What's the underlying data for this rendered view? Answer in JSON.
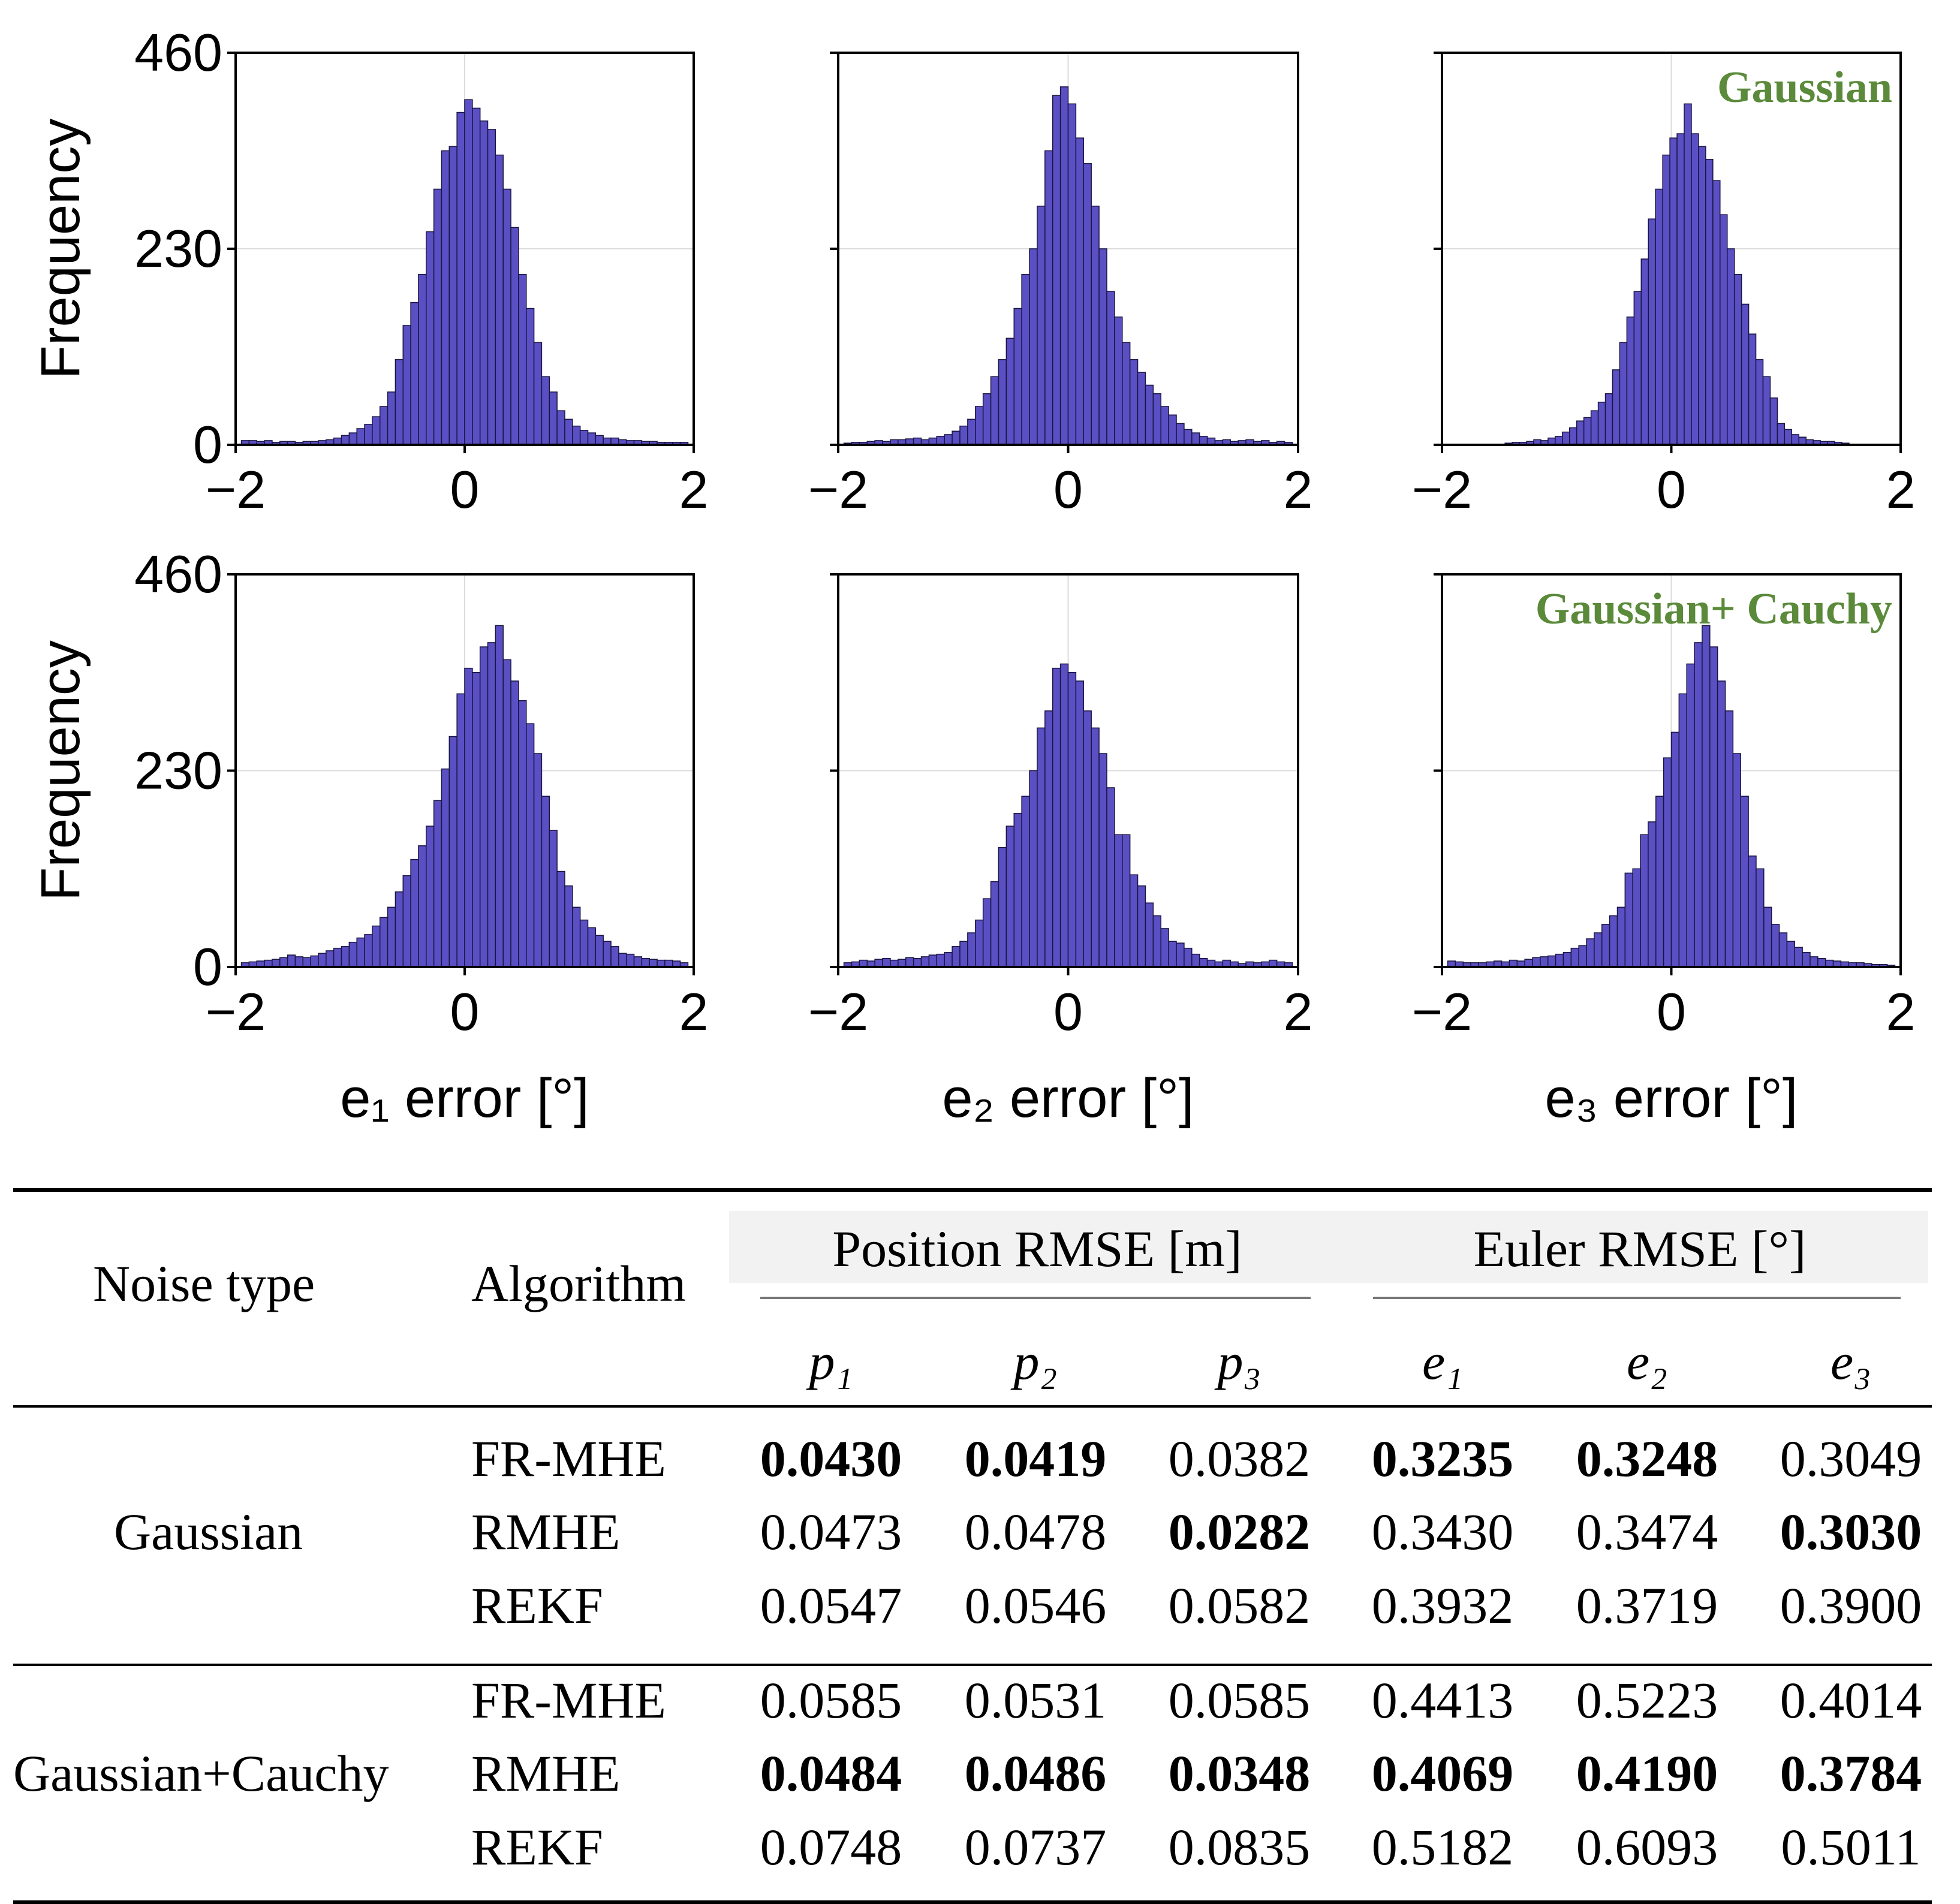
{
  "chart_data": [
    {
      "type": "bar",
      "xlabel": "",
      "ylabel": "Frequency",
      "xlim": [
        -2,
        2
      ],
      "ylim": [
        0,
        460
      ],
      "xticks": [
        "−2",
        "0",
        "2"
      ],
      "yticks": [
        "0",
        "230",
        "460"
      ],
      "grid": true,
      "annotation": "",
      "bar_color": "#5b4fc4",
      "bin_range": [
        -1.95,
        1.95
      ],
      "values": [
        5,
        5,
        4,
        5,
        3,
        4,
        4,
        3,
        4,
        4,
        5,
        6,
        8,
        11,
        14,
        19,
        24,
        33,
        45,
        62,
        100,
        140,
        167,
        200,
        250,
        300,
        345,
        350,
        390,
        405,
        395,
        380,
        370,
        340,
        300,
        255,
        200,
        160,
        120,
        80,
        62,
        40,
        30,
        22,
        17,
        14,
        11,
        8,
        8,
        6,
        5,
        5,
        4,
        4,
        3,
        3,
        3,
        3
      ]
    },
    {
      "type": "bar",
      "xlabel": "",
      "ylabel": "",
      "xlim": [
        -2,
        2
      ],
      "ylim": [
        0,
        460
      ],
      "xticks": [
        "−2",
        "0",
        "2"
      ],
      "yticks": [],
      "grid": true,
      "annotation": "",
      "bar_color": "#5b4fc4",
      "bin_range": [
        -1.95,
        1.95
      ],
      "values": [
        2,
        3,
        3,
        4,
        5,
        4,
        6,
        6,
        7,
        8,
        6,
        8,
        10,
        12,
        16,
        22,
        30,
        45,
        60,
        80,
        100,
        125,
        160,
        200,
        230,
        280,
        345,
        410,
        420,
        400,
        360,
        330,
        280,
        230,
        180,
        150,
        120,
        100,
        85,
        70,
        60,
        45,
        35,
        25,
        18,
        14,
        10,
        8,
        5,
        6,
        4,
        5,
        6,
        4,
        5,
        3,
        4,
        3
      ]
    },
    {
      "type": "bar",
      "xlabel": "",
      "ylabel": "",
      "xlim": [
        -2,
        2
      ],
      "ylim": [
        0,
        460
      ],
      "xticks": [
        "−2",
        "0",
        "2"
      ],
      "yticks": [],
      "grid": true,
      "annotation": "Gaussian",
      "bar_color": "#5b4fc4",
      "bin_range": [
        -1.45,
        1.55
      ],
      "values": [
        2,
        3,
        3,
        4,
        6,
        5,
        8,
        10,
        15,
        20,
        28,
        32,
        40,
        50,
        60,
        88,
        120,
        150,
        180,
        218,
        265,
        300,
        340,
        360,
        365,
        400,
        365,
        350,
        335,
        310,
        270,
        230,
        200,
        165,
        130,
        100,
        80,
        55,
        25,
        18,
        12,
        9,
        6,
        5,
        4,
        4,
        3,
        2
      ]
    },
    {
      "type": "bar",
      "xlabel": "e₁ error [°]",
      "ylabel": "Frequency",
      "xlim": [
        -2,
        2
      ],
      "ylim": [
        0,
        460
      ],
      "xticks": [
        "−2",
        "0",
        "2"
      ],
      "yticks": [
        "0",
        "230",
        "460"
      ],
      "grid": true,
      "annotation": "",
      "bar_color": "#5b4fc4",
      "bin_range": [
        -1.95,
        1.95
      ],
      "values": [
        5,
        6,
        7,
        8,
        9,
        11,
        14,
        12,
        11,
        13,
        16,
        19,
        22,
        24,
        29,
        34,
        38,
        48,
        58,
        70,
        88,
        107,
        126,
        142,
        165,
        195,
        232,
        270,
        320,
        350,
        345,
        375,
        380,
        400,
        360,
        335,
        312,
        285,
        250,
        200,
        160,
        112,
        95,
        70,
        55,
        46,
        37,
        30,
        24,
        16,
        15,
        12,
        10,
        9,
        8,
        8,
        7,
        5
      ]
    },
    {
      "type": "bar",
      "xlabel": "e₂ error [°]",
      "ylabel": "",
      "xlim": [
        -2,
        2
      ],
      "ylim": [
        0,
        460
      ],
      "xticks": [
        "−2",
        "0",
        "2"
      ],
      "yticks": [],
      "grid": true,
      "annotation": "",
      "bar_color": "#5b4fc4",
      "bin_range": [
        -1.95,
        1.95
      ],
      "values": [
        5,
        6,
        8,
        7,
        9,
        10,
        8,
        9,
        11,
        10,
        12,
        14,
        15,
        17,
        24,
        30,
        40,
        55,
        80,
        100,
        140,
        165,
        180,
        200,
        230,
        280,
        300,
        350,
        355,
        345,
        335,
        300,
        280,
        250,
        210,
        155,
        155,
        108,
        95,
        75,
        60,
        45,
        30,
        28,
        22,
        15,
        10,
        8,
        6,
        8,
        6,
        4,
        6,
        5,
        6,
        8,
        6,
        5
      ]
    },
    {
      "type": "bar",
      "xlabel": "e₃ error [°]",
      "ylabel": "",
      "xlim": [
        -2,
        2
      ],
      "ylim": [
        0,
        460
      ],
      "xticks": [
        "−2",
        "0",
        "2"
      ],
      "yticks": [],
      "grid": true,
      "annotation": "Gaussian+ Cauchy",
      "bar_color": "#5b4fc4",
      "bin_range": [
        -1.95,
        1.95
      ],
      "values": [
        7,
        6,
        5,
        5,
        5,
        6,
        7,
        6,
        8,
        7,
        9,
        11,
        12,
        13,
        15,
        17,
        22,
        25,
        33,
        40,
        50,
        60,
        70,
        110,
        115,
        155,
        170,
        200,
        245,
        275,
        320,
        355,
        380,
        400,
        375,
        335,
        300,
        250,
        200,
        130,
        115,
        70,
        50,
        40,
        30,
        23,
        17,
        12,
        10,
        8,
        7,
        6,
        5,
        5,
        4,
        3,
        3,
        2
      ]
    },
    {
      "type": "table",
      "header": {
        "noise_type": "Noise type",
        "algorithm": "Algorithm",
        "group_position": "Position RMSE [m]",
        "group_euler": "Euler RMSE [°]",
        "columns": [
          "p₁",
          "p₂",
          "p₃",
          "e₁",
          "e₂",
          "e₃"
        ]
      },
      "groups": [
        {
          "noise": "Gaussian",
          "rows": [
            {
              "algorithm": "FR-MHE",
              "values": [
                "0.0430",
                "0.0419",
                "0.0382",
                "0.3235",
                "0.3248",
                "0.3049"
              ],
              "bold": [
                true,
                true,
                false,
                true,
                true,
                false
              ]
            },
            {
              "algorithm": "RMHE",
              "values": [
                "0.0473",
                "0.0478",
                "0.0282",
                "0.3430",
                "0.3474",
                "0.3030"
              ],
              "bold": [
                false,
                false,
                true,
                false,
                false,
                true
              ]
            },
            {
              "algorithm": "REKF",
              "values": [
                "0.0547",
                "0.0546",
                "0.0582",
                "0.3932",
                "0.3719",
                "0.3900"
              ],
              "bold": [
                false,
                false,
                false,
                false,
                false,
                false
              ]
            }
          ]
        },
        {
          "noise": "Gaussian+Cauchy",
          "rows": [
            {
              "algorithm": "FR-MHE",
              "values": [
                "0.0585",
                "0.0531",
                "0.0585",
                "0.4413",
                "0.5223",
                "0.4014"
              ],
              "bold": [
                false,
                false,
                false,
                false,
                false,
                false
              ]
            },
            {
              "algorithm": "RMHE",
              "values": [
                "0.0484",
                "0.0486",
                "0.0348",
                "0.4069",
                "0.4190",
                "0.3784"
              ],
              "bold": [
                true,
                true,
                true,
                true,
                true,
                true
              ]
            },
            {
              "algorithm": "REKF",
              "values": [
                "0.0748",
                "0.0737",
                "0.0835",
                "0.5182",
                "0.6093",
                "0.5011"
              ],
              "bold": [
                false,
                false,
                false,
                false,
                false,
                false
              ]
            }
          ]
        }
      ]
    }
  ]
}
